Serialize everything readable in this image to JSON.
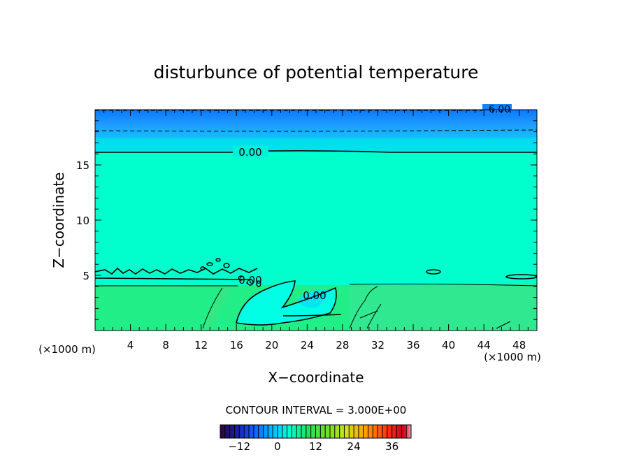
{
  "chart_data": {
    "type": "heatmap",
    "title": "disturbunce of potential temperature",
    "xlabel": "X−coordinate",
    "ylabel": "Z−coordinate",
    "x_unit": "(×1000 m)",
    "y_unit": "(×1000 m)",
    "xlim": [
      0,
      50
    ],
    "ylim": [
      0,
      20
    ],
    "xticks": [
      4,
      8,
      12,
      16,
      20,
      24,
      28,
      32,
      36,
      40,
      44,
      48
    ],
    "yticks": [
      5,
      10,
      15
    ],
    "contour_interval_text": "CONTOUR INTERVAL = 3.000E+00",
    "contour_labels": [
      "-6.00",
      "0.00",
      "0.00",
      "0.00"
    ],
    "contour_levels": [
      -6,
      -3,
      0
    ],
    "colorbar": {
      "min": -18,
      "max": 42,
      "ticks": [
        -12,
        0,
        12,
        24,
        36
      ],
      "tick_labels": [
        "−12",
        "0",
        "12",
        "24",
        "36"
      ]
    },
    "field_summary": [
      {
        "z_range": [
          19.0,
          20.0
        ],
        "value": -6
      },
      {
        "z_range": [
          18.0,
          19.0
        ],
        "value": -4.5
      },
      {
        "z_range": [
          16.0,
          18.0
        ],
        "value": -2
      },
      {
        "z_range": [
          4.0,
          16.0
        ],
        "value": 0.5
      },
      {
        "z_range": [
          0.0,
          4.0
        ],
        "value": 3
      }
    ],
    "grid": false
  },
  "colors": {
    "level_upper": "#0077ff",
    "level_mid": "#00b8ff",
    "level_near_zero": "#00ffcc",
    "level_positive": "#22ee88",
    "level_cold_pool": "#00ffe4"
  }
}
